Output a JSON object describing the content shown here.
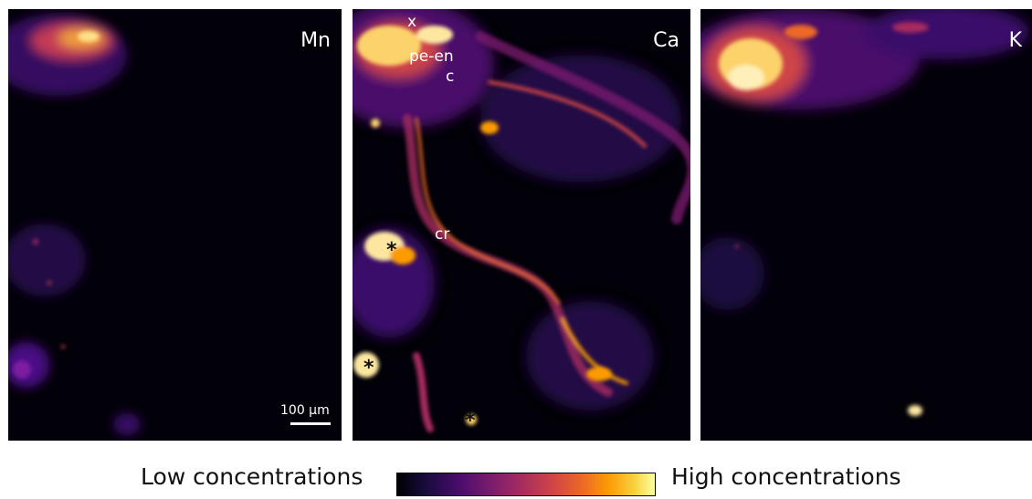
{
  "panels": [
    {
      "element": "Mn"
    },
    {
      "element": "Ca"
    },
    {
      "element": "K"
    }
  ],
  "annotations": {
    "x": "x",
    "pe_en": "pe-en",
    "c": "c",
    "cr": "cr",
    "star": "*"
  },
  "scale_bar": {
    "label": "100 µm"
  },
  "legend": {
    "low_label": "Low concentrations",
    "high_label": "High concentrations",
    "colormap": [
      "#000004",
      "#4a0c6b",
      "#a52c60",
      "#ed6925",
      "#fb9b06",
      "#fcffa4"
    ]
  }
}
